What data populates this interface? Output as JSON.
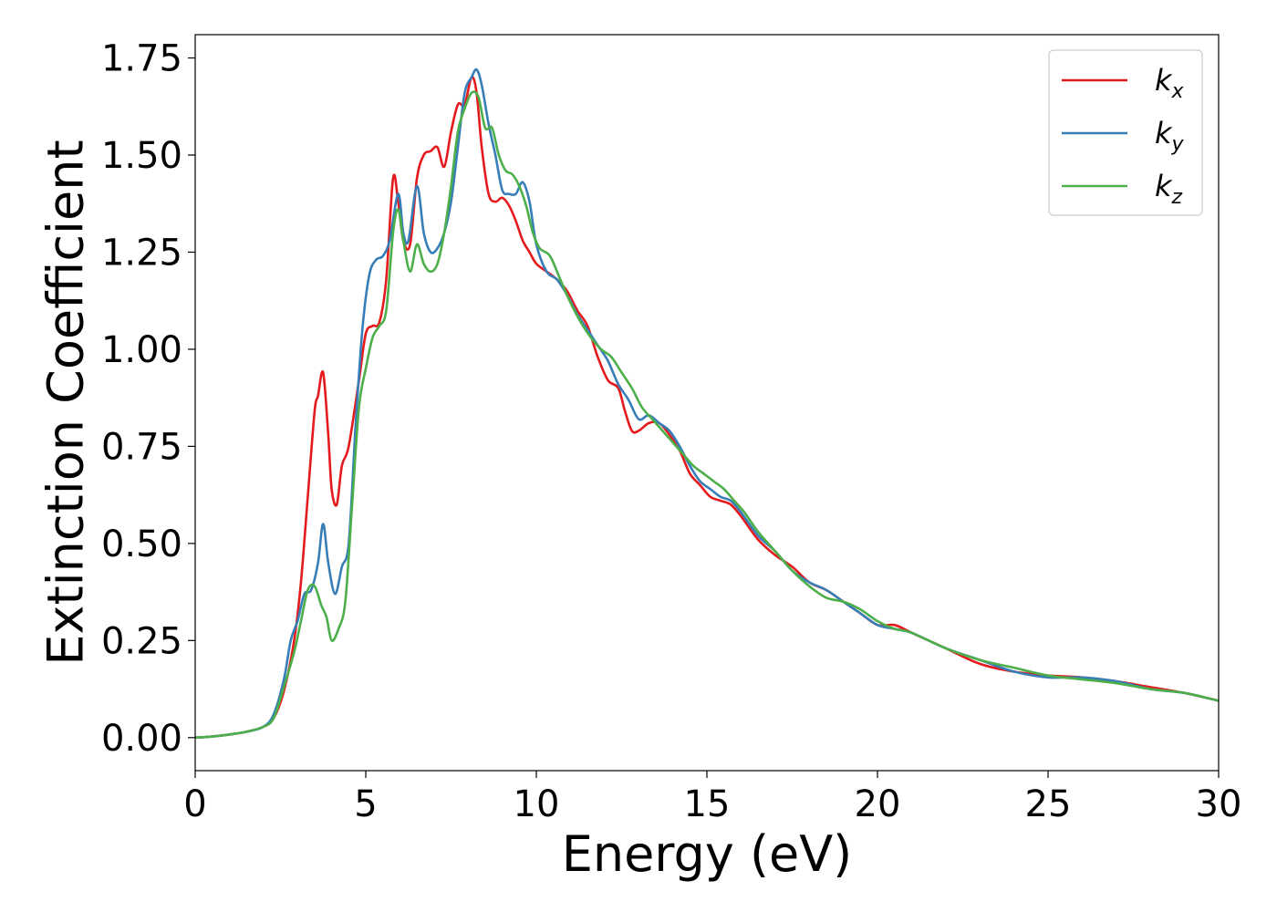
{
  "chart_data": {
    "type": "line",
    "title": "",
    "xlabel": "Energy (eV)",
    "ylabel": "Extinction Coefficient",
    "xlim": [
      0,
      30
    ],
    "ylim": [
      -0.085,
      1.81
    ],
    "xticks": [
      0,
      5,
      10,
      15,
      20,
      25,
      30
    ],
    "yticks": [
      0.0,
      0.25,
      0.5,
      0.75,
      1.0,
      1.25,
      1.5,
      1.75
    ],
    "xtick_labels": [
      "0",
      "5",
      "10",
      "15",
      "20",
      "25",
      "30"
    ],
    "ytick_labels": [
      "0.00",
      "0.25",
      "0.50",
      "0.75",
      "1.00",
      "1.25",
      "1.50",
      "1.75"
    ],
    "grid": false,
    "legend_position": "top-right",
    "series": [
      {
        "name": "k_x",
        "legend_base": "k",
        "legend_sub": "x",
        "color": "#e41a1c",
        "x": [
          0,
          0.5,
          1.0,
          1.5,
          2.0,
          2.3,
          2.6,
          2.9,
          3.1,
          3.3,
          3.5,
          3.6,
          3.75,
          3.9,
          4.0,
          4.15,
          4.3,
          4.5,
          4.8,
          5.0,
          5.2,
          5.4,
          5.6,
          5.8,
          5.95,
          6.1,
          6.3,
          6.5,
          6.7,
          6.9,
          7.1,
          7.3,
          7.5,
          7.7,
          7.9,
          8.1,
          8.25,
          8.4,
          8.6,
          8.8,
          9.0,
          9.2,
          9.4,
          9.6,
          9.8,
          10.0,
          10.3,
          10.6,
          10.9,
          11.2,
          11.5,
          11.8,
          12.1,
          12.4,
          12.6,
          12.8,
          13.0,
          13.3,
          13.6,
          13.9,
          14.2,
          14.5,
          14.8,
          15.1,
          15.4,
          15.7,
          16.0,
          16.5,
          17.0,
          17.5,
          18.0,
          18.5,
          19.0,
          19.5,
          20.0,
          20.5,
          21.0,
          22.0,
          23.0,
          24.0,
          25.0,
          26.0,
          27.0,
          28.0,
          29.0,
          30.0
        ],
        "y": [
          0.0,
          0.003,
          0.008,
          0.015,
          0.028,
          0.05,
          0.12,
          0.25,
          0.4,
          0.62,
          0.84,
          0.88,
          0.94,
          0.78,
          0.64,
          0.6,
          0.7,
          0.75,
          0.92,
          1.04,
          1.06,
          1.07,
          1.18,
          1.44,
          1.38,
          1.28,
          1.27,
          1.44,
          1.5,
          1.51,
          1.52,
          1.47,
          1.56,
          1.63,
          1.63,
          1.7,
          1.66,
          1.52,
          1.4,
          1.38,
          1.39,
          1.37,
          1.33,
          1.28,
          1.25,
          1.22,
          1.2,
          1.18,
          1.15,
          1.1,
          1.06,
          0.98,
          0.92,
          0.9,
          0.84,
          0.79,
          0.79,
          0.81,
          0.81,
          0.78,
          0.74,
          0.68,
          0.65,
          0.62,
          0.61,
          0.6,
          0.57,
          0.51,
          0.47,
          0.44,
          0.4,
          0.38,
          0.35,
          0.32,
          0.29,
          0.29,
          0.27,
          0.23,
          0.19,
          0.17,
          0.16,
          0.155,
          0.145,
          0.13,
          0.115,
          0.095
        ]
      },
      {
        "name": "k_y",
        "legend_base": "k",
        "legend_sub": "y",
        "color": "#377eb8",
        "x": [
          0,
          0.5,
          1.0,
          1.5,
          2.0,
          2.3,
          2.6,
          2.8,
          3.0,
          3.2,
          3.4,
          3.6,
          3.75,
          3.9,
          4.1,
          4.3,
          4.5,
          4.7,
          4.9,
          5.1,
          5.3,
          5.5,
          5.7,
          5.95,
          6.1,
          6.25,
          6.5,
          6.7,
          6.9,
          7.1,
          7.3,
          7.5,
          7.7,
          7.9,
          8.1,
          8.25,
          8.4,
          8.6,
          8.8,
          9.0,
          9.2,
          9.4,
          9.6,
          9.8,
          10.0,
          10.3,
          10.6,
          10.9,
          11.2,
          11.5,
          11.8,
          12.1,
          12.4,
          12.7,
          13.0,
          13.3,
          13.6,
          13.9,
          14.2,
          14.5,
          14.8,
          15.1,
          15.4,
          15.7,
          16.0,
          16.5,
          17.0,
          17.5,
          18.0,
          18.5,
          19.0,
          19.5,
          20.0,
          20.5,
          21.0,
          22.0,
          23.0,
          24.0,
          25.0,
          26.0,
          27.0,
          28.0,
          29.0,
          30.0
        ],
        "y": [
          0.0,
          0.003,
          0.008,
          0.015,
          0.028,
          0.06,
          0.15,
          0.25,
          0.3,
          0.37,
          0.38,
          0.45,
          0.55,
          0.45,
          0.37,
          0.44,
          0.5,
          0.8,
          1.05,
          1.19,
          1.23,
          1.24,
          1.28,
          1.4,
          1.3,
          1.28,
          1.42,
          1.3,
          1.25,
          1.26,
          1.3,
          1.38,
          1.52,
          1.66,
          1.7,
          1.72,
          1.68,
          1.58,
          1.5,
          1.41,
          1.4,
          1.4,
          1.43,
          1.38,
          1.27,
          1.2,
          1.18,
          1.14,
          1.09,
          1.05,
          1.01,
          0.97,
          0.91,
          0.87,
          0.82,
          0.83,
          0.81,
          0.79,
          0.75,
          0.7,
          0.66,
          0.64,
          0.62,
          0.61,
          0.58,
          0.52,
          0.48,
          0.43,
          0.4,
          0.38,
          0.35,
          0.32,
          0.29,
          0.28,
          0.27,
          0.23,
          0.2,
          0.17,
          0.155,
          0.155,
          0.145,
          0.125,
          0.115,
          0.095
        ]
      },
      {
        "name": "k_z",
        "legend_base": "k",
        "legend_sub": "z",
        "color": "#4daf4a",
        "x": [
          0,
          0.5,
          1.0,
          1.5,
          2.0,
          2.3,
          2.6,
          2.9,
          3.1,
          3.3,
          3.5,
          3.7,
          3.85,
          4.0,
          4.2,
          4.4,
          4.6,
          4.8,
          5.0,
          5.2,
          5.4,
          5.6,
          5.8,
          5.95,
          6.1,
          6.3,
          6.5,
          6.7,
          6.9,
          7.1,
          7.3,
          7.5,
          7.7,
          7.9,
          8.1,
          8.3,
          8.5,
          8.7,
          8.9,
          9.1,
          9.3,
          9.5,
          9.7,
          9.9,
          10.1,
          10.4,
          10.7,
          11.0,
          11.3,
          11.6,
          11.9,
          12.2,
          12.5,
          12.8,
          13.1,
          13.4,
          13.7,
          14.0,
          14.3,
          14.6,
          14.9,
          15.2,
          15.5,
          15.8,
          16.1,
          16.5,
          17.0,
          17.5,
          18.0,
          18.5,
          19.0,
          19.5,
          20.0,
          20.5,
          21.0,
          22.0,
          23.0,
          24.0,
          25.0,
          26.0,
          27.0,
          28.0,
          29.0,
          30.0
        ],
        "y": [
          0.0,
          0.003,
          0.008,
          0.015,
          0.028,
          0.05,
          0.13,
          0.22,
          0.3,
          0.38,
          0.39,
          0.34,
          0.31,
          0.25,
          0.28,
          0.35,
          0.6,
          0.85,
          0.95,
          1.03,
          1.06,
          1.1,
          1.3,
          1.36,
          1.28,
          1.2,
          1.27,
          1.22,
          1.2,
          1.22,
          1.3,
          1.42,
          1.56,
          1.62,
          1.66,
          1.65,
          1.57,
          1.57,
          1.5,
          1.46,
          1.45,
          1.42,
          1.37,
          1.3,
          1.26,
          1.24,
          1.18,
          1.12,
          1.07,
          1.03,
          1.0,
          0.98,
          0.94,
          0.9,
          0.85,
          0.82,
          0.79,
          0.76,
          0.73,
          0.7,
          0.68,
          0.66,
          0.64,
          0.61,
          0.58,
          0.53,
          0.48,
          0.43,
          0.39,
          0.36,
          0.35,
          0.33,
          0.3,
          0.28,
          0.27,
          0.23,
          0.2,
          0.18,
          0.16,
          0.15,
          0.14,
          0.125,
          0.115,
          0.095
        ]
      }
    ]
  }
}
